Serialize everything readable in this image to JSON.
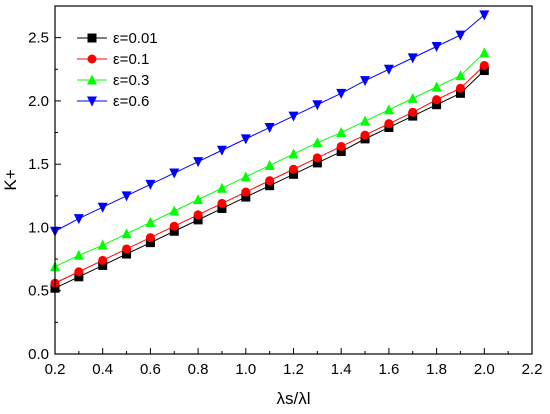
{
  "chart_data": {
    "type": "line",
    "title": "",
    "xlabel": "λs/λl",
    "ylabel": "K+",
    "xlim": [
      0.2,
      2.2
    ],
    "ylim": [
      0.0,
      2.75
    ],
    "xticks": [
      0.2,
      0.4,
      0.6,
      0.8,
      1.0,
      1.2,
      1.4,
      1.6,
      1.8,
      2.0,
      2.2
    ],
    "xtick_labels": [
      "0.2",
      "0.4",
      "0.6",
      "0.8",
      "1.0",
      "1.2",
      "1.4",
      "1.6",
      "1.8",
      "2.0",
      "2.2"
    ],
    "yticks": [
      0.0,
      0.5,
      1.0,
      1.5,
      2.0,
      2.5
    ],
    "ytick_labels": [
      "0.0",
      "0.5",
      "1.0",
      "1.5",
      "2.0",
      "2.5"
    ],
    "grid": false,
    "legend_position": "top-left",
    "x": [
      0.2,
      0.3,
      0.4,
      0.5,
      0.6,
      0.7,
      0.8,
      0.9,
      1.0,
      1.1,
      1.2,
      1.3,
      1.4,
      1.5,
      1.6,
      1.7,
      1.8,
      1.9,
      2.0
    ],
    "series": [
      {
        "name": "ε=0.01",
        "color": "#000000",
        "marker": "square",
        "values": [
          0.52,
          0.61,
          0.7,
          0.79,
          0.88,
          0.97,
          1.06,
          1.15,
          1.24,
          1.33,
          1.42,
          1.51,
          1.6,
          1.7,
          1.79,
          1.88,
          1.97,
          2.06,
          2.24
        ]
      },
      {
        "name": "ε=0.1",
        "color": "#ff0000",
        "marker": "circle",
        "values": [
          0.56,
          0.65,
          0.74,
          0.83,
          0.92,
          1.01,
          1.1,
          1.19,
          1.28,
          1.37,
          1.46,
          1.55,
          1.64,
          1.73,
          1.82,
          1.91,
          2.01,
          2.1,
          2.28
        ]
      },
      {
        "name": "ε=0.3",
        "color": "#00ff00",
        "marker": "triangle-up",
        "values": [
          0.69,
          0.78,
          0.86,
          0.95,
          1.04,
          1.13,
          1.22,
          1.31,
          1.4,
          1.49,
          1.58,
          1.67,
          1.75,
          1.84,
          1.93,
          2.02,
          2.11,
          2.2,
          2.38
        ]
      },
      {
        "name": "ε=0.6",
        "color": "#0000ff",
        "marker": "triangle-down",
        "values": [
          0.97,
          1.07,
          1.16,
          1.25,
          1.34,
          1.43,
          1.52,
          1.61,
          1.7,
          1.79,
          1.88,
          1.97,
          2.06,
          2.16,
          2.25,
          2.34,
          2.43,
          2.52,
          2.68
        ]
      }
    ]
  }
}
